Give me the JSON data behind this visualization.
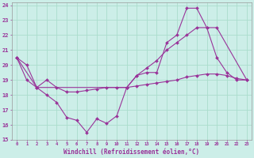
{
  "xlabel": "Windchill (Refroidissement éolien,°C)",
  "xlim": [
    -0.5,
    23.5
  ],
  "ylim": [
    15,
    24.2
  ],
  "yticks": [
    15,
    16,
    17,
    18,
    19,
    20,
    21,
    22,
    23,
    24
  ],
  "xticks": [
    0,
    1,
    2,
    3,
    4,
    5,
    6,
    7,
    8,
    9,
    10,
    11,
    12,
    13,
    14,
    15,
    16,
    17,
    18,
    19,
    20,
    21,
    22,
    23
  ],
  "background_color": "#cceee8",
  "grid_color": "#aaddcc",
  "line_color": "#993399",
  "series": [
    {
      "x": [
        0,
        1,
        2,
        3,
        4,
        5,
        6,
        7,
        8,
        9,
        10,
        11,
        12,
        13,
        14,
        15,
        16,
        17,
        18,
        19,
        20,
        21,
        22,
        23
      ],
      "y": [
        20.5,
        20.0,
        18.5,
        18.0,
        17.5,
        16.5,
        16.3,
        15.5,
        16.4,
        16.1,
        16.6,
        18.5,
        19.3,
        19.5,
        19.5,
        21.5,
        22.0,
        23.8,
        23.8,
        22.5,
        20.5,
        19.5,
        19.0,
        19.0
      ]
    },
    {
      "x": [
        0,
        2,
        11,
        12,
        13,
        14,
        15,
        16,
        17,
        18,
        19,
        20,
        23
      ],
      "y": [
        20.5,
        18.5,
        18.5,
        19.3,
        19.8,
        20.3,
        21.0,
        21.5,
        22.0,
        22.5,
        22.5,
        22.5,
        19.0
      ]
    },
    {
      "x": [
        0,
        1,
        2,
        3,
        4,
        5,
        6,
        7,
        8,
        9,
        10,
        11,
        12,
        13,
        14,
        15,
        16,
        17,
        18,
        19,
        20,
        21,
        22,
        23
      ],
      "y": [
        20.5,
        19.0,
        18.5,
        19.0,
        18.5,
        18.2,
        18.2,
        18.3,
        18.4,
        18.5,
        18.5,
        18.5,
        18.6,
        18.7,
        18.8,
        18.9,
        19.0,
        19.2,
        19.3,
        19.4,
        19.4,
        19.3,
        19.1,
        19.0
      ]
    }
  ]
}
